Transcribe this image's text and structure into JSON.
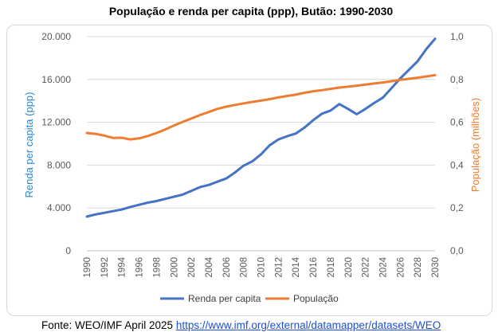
{
  "chart_data": {
    "type": "line",
    "title": "População e renda per capita (ppp), Butão: 1990-2030",
    "xlabel": "",
    "ylabel_left": "Renda per capita (ppp)",
    "ylabel_right": "População (milhões)",
    "x": [
      1990,
      1991,
      1992,
      1993,
      1994,
      1995,
      1996,
      1997,
      1998,
      1999,
      2000,
      2001,
      2002,
      2003,
      2004,
      2005,
      2006,
      2007,
      2008,
      2009,
      2010,
      2011,
      2012,
      2013,
      2014,
      2015,
      2016,
      2017,
      2018,
      2019,
      2020,
      2021,
      2022,
      2023,
      2024,
      2025,
      2026,
      2027,
      2028,
      2029,
      2030
    ],
    "x_ticks": [
      "1990",
      "1992",
      "1994",
      "1996",
      "1998",
      "2000",
      "2002",
      "2004",
      "2006",
      "2008",
      "2010",
      "2012",
      "2014",
      "2016",
      "2018",
      "2020",
      "2022",
      "2024",
      "2026",
      "2028",
      "2030"
    ],
    "y_left_ticks": [
      "0",
      "4.000",
      "8.000",
      "12.000",
      "16.000",
      "20.000"
    ],
    "y_left_lim": [
      0,
      20000
    ],
    "y_right_ticks": [
      "0,0",
      "0,2",
      "0,4",
      "0,6",
      "0,8",
      "1,0"
    ],
    "y_right_lim": [
      0,
      1.0
    ],
    "series": [
      {
        "name": "Renda per capita",
        "axis": "left",
        "color": "#4472c4",
        "values": [
          3200,
          3400,
          3550,
          3700,
          3850,
          4100,
          4300,
          4500,
          4650,
          4850,
          5050,
          5250,
          5600,
          5950,
          6150,
          6450,
          6750,
          7300,
          7950,
          8350,
          9000,
          9850,
          10400,
          10700,
          10950,
          11500,
          12200,
          12800,
          13100,
          13700,
          13250,
          12750,
          13250,
          13800,
          14300,
          15200,
          16100,
          16900,
          17700,
          18850,
          19800
        ]
      },
      {
        "name": "População",
        "axis": "right",
        "color": "#ed7d31",
        "values": [
          0.55,
          0.546,
          0.538,
          0.527,
          0.528,
          0.52,
          0.525,
          0.536,
          0.55,
          0.566,
          0.585,
          0.602,
          0.618,
          0.634,
          0.648,
          0.663,
          0.673,
          0.681,
          0.688,
          0.695,
          0.701,
          0.708,
          0.716,
          0.723,
          0.729,
          0.738,
          0.745,
          0.75,
          0.756,
          0.762,
          0.766,
          0.771,
          0.776,
          0.781,
          0.786,
          0.792,
          0.798,
          0.803,
          0.808,
          0.814,
          0.82
        ]
      }
    ],
    "legend_position": "bottom"
  },
  "footer": {
    "source_label": "Fonte: WEO/IMF April 2025",
    "link_text": "https://www.imf.org/external/datamapper/datasets/WEO"
  }
}
